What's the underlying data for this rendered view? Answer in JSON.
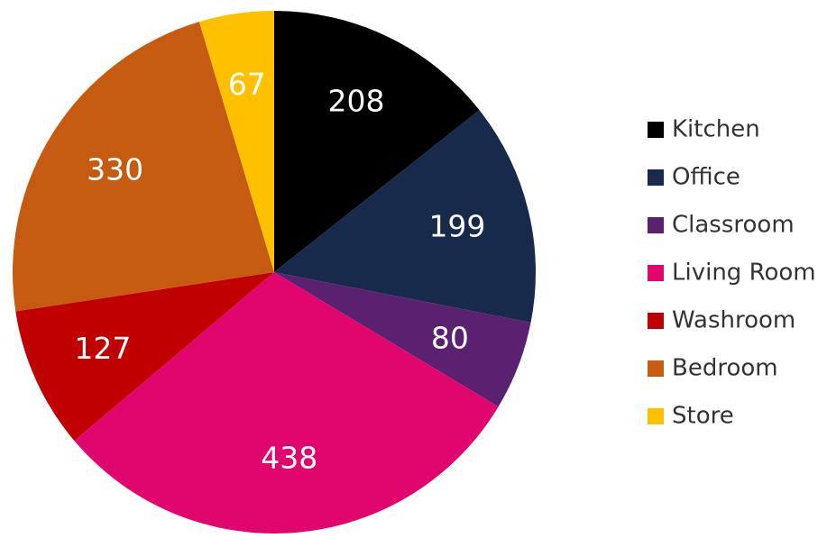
{
  "chart_data": {
    "type": "pie",
    "categories": [
      "Kitchen",
      "Office",
      "Classroom",
      "Living Room",
      "Washroom",
      "Bedroom",
      "Store"
    ],
    "values": [
      208,
      199,
      80,
      438,
      127,
      330,
      67
    ],
    "colors": [
      "#000000",
      "#172a4b",
      "#5a2170",
      "#e0066e",
      "#c00000",
      "#c55a11",
      "#ffc000"
    ],
    "legend": "right"
  }
}
